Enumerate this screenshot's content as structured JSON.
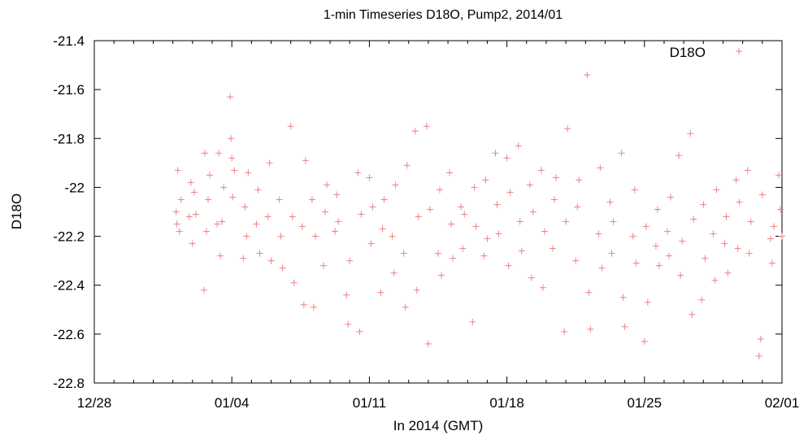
{
  "chart_data": {
    "type": "scatter",
    "title": "1-min Timeseries D18O, Pump2, 2014/01",
    "xlabel": "In 2014 (GMT)",
    "ylabel": "D18O",
    "x_range": [
      "2013-12-28",
      "2014-02-01"
    ],
    "x_ticks": [
      "12/28",
      "01/04",
      "01/11",
      "01/18",
      "01/25",
      "02/01"
    ],
    "ylim": [
      -22.8,
      -21.4
    ],
    "y_ticks": [
      "-21.4",
      "-21.6",
      "-21.8",
      "-22",
      "-22.2",
      "-22.4",
      "-22.6",
      "-22.8"
    ],
    "grid": false,
    "legend_position": "top-right",
    "marker": "+",
    "series": [
      {
        "name": "D18O",
        "color": "#f08080",
        "points": [
          [
            "2014-01-01 04:00",
            -22.1
          ],
          [
            "2014-01-01 05:00",
            -22.15
          ],
          [
            "2014-01-01 06:00",
            -21.93
          ],
          [
            "2014-01-01 08:00",
            -22.18
          ],
          [
            "2014-01-01 10:00",
            -22.05
          ],
          [
            "2014-01-01 20:00",
            -22.12
          ],
          [
            "2014-01-01 22:00",
            -21.98
          ],
          [
            "2014-01-02 00:00",
            -22.23
          ],
          [
            "2014-01-02 02:00",
            -22.02
          ],
          [
            "2014-01-02 04:00",
            -22.11
          ],
          [
            "2014-01-02 14:00",
            -22.42
          ],
          [
            "2014-01-02 15:00",
            -21.86
          ],
          [
            "2014-01-02 17:00",
            -22.18
          ],
          [
            "2014-01-02 19:00",
            -22.05
          ],
          [
            "2014-01-02 21:00",
            -21.95
          ],
          [
            "2014-01-03 06:00",
            -22.15
          ],
          [
            "2014-01-03 08:00",
            -21.86
          ],
          [
            "2014-01-03 10:00",
            -22.28
          ],
          [
            "2014-01-03 12:00",
            -22.14
          ],
          [
            "2014-01-03 14:00",
            -22.0
          ],
          [
            "2014-01-03 22:00",
            -21.63
          ],
          [
            "2014-01-03 23:00",
            -21.8
          ],
          [
            "2014-01-04 00:00",
            -21.88
          ],
          [
            "2014-01-04 01:00",
            -22.04
          ],
          [
            "2014-01-04 03:00",
            -21.93
          ],
          [
            "2014-01-04 14:00",
            -22.29
          ],
          [
            "2014-01-04 16:00",
            -22.08
          ],
          [
            "2014-01-04 18:00",
            -22.2
          ],
          [
            "2014-01-04 20:00",
            -21.94
          ],
          [
            "2014-01-05 06:00",
            -22.15
          ],
          [
            "2014-01-05 08:00",
            -22.01
          ],
          [
            "2014-01-05 10:00",
            -22.27
          ],
          [
            "2014-01-05 20:00",
            -22.12
          ],
          [
            "2014-01-05 22:00",
            -21.9
          ],
          [
            "2014-01-06 00:00",
            -22.3
          ],
          [
            "2014-01-06 10:00",
            -22.05
          ],
          [
            "2014-01-06 12:00",
            -22.2
          ],
          [
            "2014-01-06 14:00",
            -22.33
          ],
          [
            "2014-01-07 00:00",
            -21.75
          ],
          [
            "2014-01-07 02:00",
            -22.12
          ],
          [
            "2014-01-07 04:00",
            -22.39
          ],
          [
            "2014-01-07 14:00",
            -22.16
          ],
          [
            "2014-01-07 16:00",
            -22.48
          ],
          [
            "2014-01-07 18:00",
            -21.89
          ],
          [
            "2014-01-08 02:00",
            -22.05
          ],
          [
            "2014-01-08 04:00",
            -22.49
          ],
          [
            "2014-01-08 06:00",
            -22.2
          ],
          [
            "2014-01-08 16:00",
            -22.32
          ],
          [
            "2014-01-08 18:00",
            -22.1
          ],
          [
            "2014-01-08 20:00",
            -21.99
          ],
          [
            "2014-01-09 06:00",
            -22.18
          ],
          [
            "2014-01-09 08:00",
            -22.03
          ],
          [
            "2014-01-09 10:00",
            -22.14
          ],
          [
            "2014-01-09 20:00",
            -22.44
          ],
          [
            "2014-01-09 22:00",
            -22.56
          ],
          [
            "2014-01-10 00:00",
            -22.3
          ],
          [
            "2014-01-10 10:00",
            -21.94
          ],
          [
            "2014-01-10 12:00",
            -22.59
          ],
          [
            "2014-01-10 14:00",
            -22.11
          ],
          [
            "2014-01-11 00:00",
            -21.96
          ],
          [
            "2014-01-11 02:00",
            -22.23
          ],
          [
            "2014-01-11 04:00",
            -22.08
          ],
          [
            "2014-01-11 14:00",
            -22.43
          ],
          [
            "2014-01-11 16:00",
            -22.17
          ],
          [
            "2014-01-11 18:00",
            -22.05
          ],
          [
            "2014-01-12 04:00",
            -22.2
          ],
          [
            "2014-01-12 06:00",
            -22.35
          ],
          [
            "2014-01-12 08:00",
            -21.99
          ],
          [
            "2014-01-12 18:00",
            -22.27
          ],
          [
            "2014-01-12 20:00",
            -22.49
          ],
          [
            "2014-01-12 22:00",
            -21.91
          ],
          [
            "2014-01-13 08:00",
            -21.77
          ],
          [
            "2014-01-13 10:00",
            -22.42
          ],
          [
            "2014-01-13 12:00",
            -22.12
          ],
          [
            "2014-01-13 22:00",
            -21.75
          ],
          [
            "2014-01-14 00:00",
            -22.64
          ],
          [
            "2014-01-14 02:00",
            -22.09
          ],
          [
            "2014-01-14 12:00",
            -22.27
          ],
          [
            "2014-01-14 14:00",
            -22.01
          ],
          [
            "2014-01-14 16:00",
            -22.36
          ],
          [
            "2014-01-15 02:00",
            -21.94
          ],
          [
            "2014-01-15 04:00",
            -22.15
          ],
          [
            "2014-01-15 06:00",
            -22.29
          ],
          [
            "2014-01-15 16:00",
            -22.08
          ],
          [
            "2014-01-15 18:00",
            -22.25
          ],
          [
            "2014-01-15 20:00",
            -22.11
          ],
          [
            "2014-01-16 06:00",
            -22.55
          ],
          [
            "2014-01-16 08:00",
            -22.0
          ],
          [
            "2014-01-16 10:00",
            -22.16
          ],
          [
            "2014-01-16 20:00",
            -22.28
          ],
          [
            "2014-01-16 22:00",
            -21.97
          ],
          [
            "2014-01-17 00:00",
            -22.21
          ],
          [
            "2014-01-17 10:00",
            -21.86
          ],
          [
            "2014-01-17 12:00",
            -22.07
          ],
          [
            "2014-01-17 14:00",
            -22.19
          ],
          [
            "2014-01-18 00:00",
            -21.88
          ],
          [
            "2014-01-18 02:00",
            -22.32
          ],
          [
            "2014-01-18 04:00",
            -22.02
          ],
          [
            "2014-01-18 14:00",
            -21.83
          ],
          [
            "2014-01-18 16:00",
            -22.14
          ],
          [
            "2014-01-18 18:00",
            -22.26
          ],
          [
            "2014-01-19 04:00",
            -21.99
          ],
          [
            "2014-01-19 06:00",
            -22.37
          ],
          [
            "2014-01-19 08:00",
            -22.1
          ],
          [
            "2014-01-19 18:00",
            -21.93
          ],
          [
            "2014-01-19 20:00",
            -22.41
          ],
          [
            "2014-01-19 22:00",
            -22.18
          ],
          [
            "2014-01-20 08:00",
            -22.25
          ],
          [
            "2014-01-20 10:00",
            -22.05
          ],
          [
            "2014-01-20 12:00",
            -21.96
          ],
          [
            "2014-01-20 22:00",
            -22.59
          ],
          [
            "2014-01-21 00:00",
            -22.14
          ],
          [
            "2014-01-21 02:00",
            -21.76
          ],
          [
            "2014-01-21 12:00",
            -22.3
          ],
          [
            "2014-01-21 14:00",
            -22.08
          ],
          [
            "2014-01-21 16:00",
            -21.97
          ],
          [
            "2014-01-22 02:00",
            -21.54
          ],
          [
            "2014-01-22 04:00",
            -22.43
          ],
          [
            "2014-01-22 06:00",
            -22.58
          ],
          [
            "2014-01-22 16:00",
            -22.19
          ],
          [
            "2014-01-22 18:00",
            -21.92
          ],
          [
            "2014-01-22 20:00",
            -22.33
          ],
          [
            "2014-01-23 06:00",
            -22.06
          ],
          [
            "2014-01-23 08:00",
            -22.27
          ],
          [
            "2014-01-23 10:00",
            -22.14
          ],
          [
            "2014-01-23 20:00",
            -21.86
          ],
          [
            "2014-01-23 22:00",
            -22.45
          ],
          [
            "2014-01-24 00:00",
            -22.57
          ],
          [
            "2014-01-24 10:00",
            -22.2
          ],
          [
            "2014-01-24 12:00",
            -22.01
          ],
          [
            "2014-01-24 14:00",
            -22.31
          ],
          [
            "2014-01-25 00:00",
            -22.63
          ],
          [
            "2014-01-25 02:00",
            -22.16
          ],
          [
            "2014-01-25 04:00",
            -22.47
          ],
          [
            "2014-01-25 14:00",
            -22.24
          ],
          [
            "2014-01-25 16:00",
            -22.09
          ],
          [
            "2014-01-25 18:00",
            -22.32
          ],
          [
            "2014-01-26 04:00",
            -22.18
          ],
          [
            "2014-01-26 06:00",
            -22.28
          ],
          [
            "2014-01-26 08:00",
            -22.04
          ],
          [
            "2014-01-26 18:00",
            -21.87
          ],
          [
            "2014-01-26 20:00",
            -22.36
          ],
          [
            "2014-01-26 22:00",
            -22.22
          ],
          [
            "2014-01-27 08:00",
            -21.78
          ],
          [
            "2014-01-27 10:00",
            -22.52
          ],
          [
            "2014-01-27 12:00",
            -22.13
          ],
          [
            "2014-01-27 22:00",
            -22.46
          ],
          [
            "2014-01-28 00:00",
            -22.07
          ],
          [
            "2014-01-28 02:00",
            -22.29
          ],
          [
            "2014-01-28 12:00",
            -22.19
          ],
          [
            "2014-01-28 14:00",
            -22.38
          ],
          [
            "2014-01-28 16:00",
            -22.01
          ],
          [
            "2014-01-29 02:00",
            -22.23
          ],
          [
            "2014-01-29 04:00",
            -22.12
          ],
          [
            "2014-01-29 06:00",
            -22.35
          ],
          [
            "2014-01-29 16:00",
            -21.97
          ],
          [
            "2014-01-29 18:00",
            -22.25
          ],
          [
            "2014-01-29 20:00",
            -22.06
          ],
          [
            "2014-01-30 06:00",
            -21.93
          ],
          [
            "2014-01-30 08:00",
            -22.27
          ],
          [
            "2014-01-30 10:00",
            -22.14
          ],
          [
            "2014-01-30 20:00",
            -22.69
          ],
          [
            "2014-01-30 22:00",
            -22.62
          ],
          [
            "2014-01-31 00:00",
            -22.03
          ],
          [
            "2014-01-31 10:00",
            -22.21
          ],
          [
            "2014-01-31 12:00",
            -22.31
          ],
          [
            "2014-01-31 14:00",
            -22.16
          ],
          [
            "2014-01-31 20:00",
            -21.95
          ],
          [
            "2014-01-31 22:00",
            -22.09
          ],
          [
            "2014-02-01 00:00",
            -22.2
          ]
        ]
      }
    ]
  }
}
